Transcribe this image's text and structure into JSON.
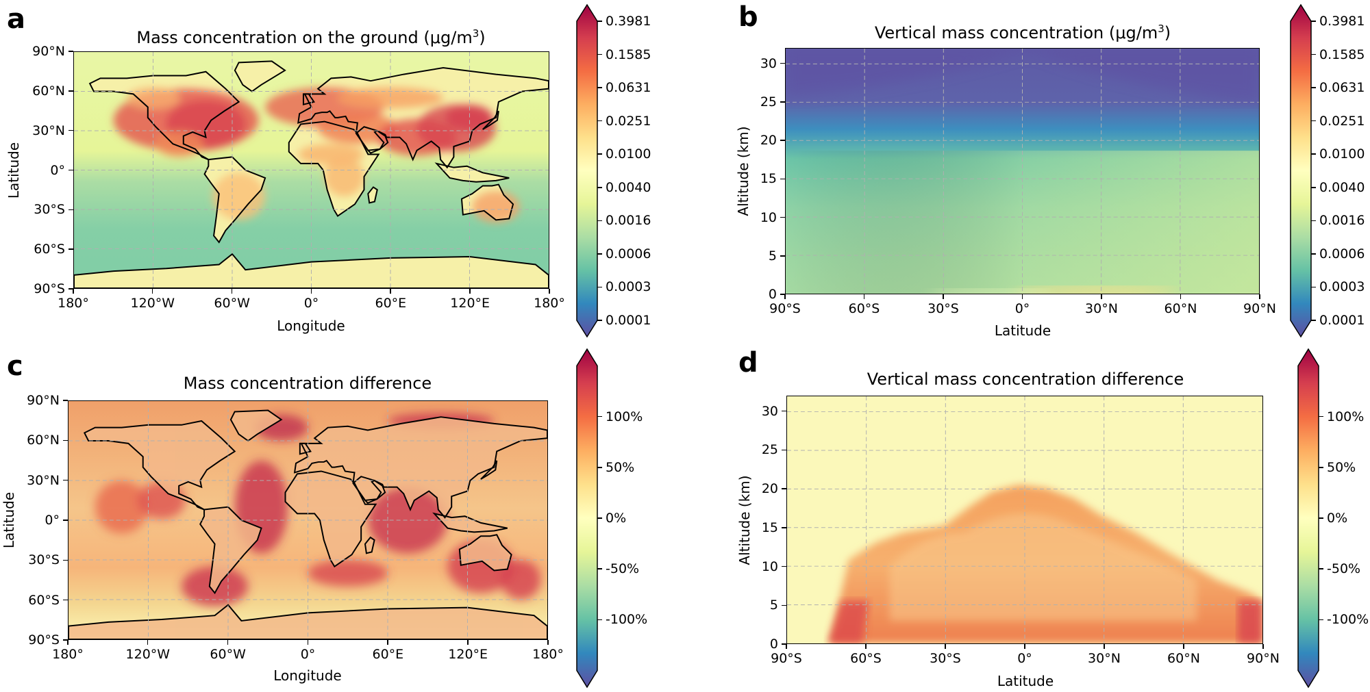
{
  "colors": {
    "spectral": [
      "#5e4fa2",
      "#3288bd",
      "#66c2a5",
      "#abdda4",
      "#e6f598",
      "#ffffbf",
      "#fee08b",
      "#fdae61",
      "#f46d43",
      "#d53e4f",
      "#9e0142"
    ],
    "grid": "#b0b0b0",
    "land_outline": "#000000"
  },
  "chart_data": [
    {
      "id": "a",
      "type": "heatmap",
      "letter": "a",
      "title": "Mass concentration on the ground (μg/m",
      "title_sup": "3",
      "title_end": ")",
      "xlabel": "Longitude",
      "ylabel": "Latitude",
      "xticks": [
        "180°",
        "120°W",
        "60°W",
        "0°",
        "60°E",
        "120°E",
        "180°"
      ],
      "yticks": [
        "90°N",
        "60°N",
        "30°N",
        "0°",
        "30°S",
        "60°S",
        "90°S"
      ],
      "xlim": [
        -180,
        180
      ],
      "ylim": [
        -90,
        90
      ],
      "colorbar": {
        "scale": "log",
        "ticks": [
          "0.3981",
          "0.1585",
          "0.0631",
          "0.0251",
          "0.0100",
          "0.0040",
          "0.0016",
          "0.0006",
          "0.0003",
          "0.0001"
        ],
        "extend": "both"
      }
    },
    {
      "id": "b",
      "type": "heatmap",
      "letter": "b",
      "title": "Vertical mass concentration (μg/m",
      "title_sup": "3",
      "title_end": ")",
      "xlabel": "Latitude",
      "ylabel": "Altitude (km)",
      "xticks": [
        "90°S",
        "60°S",
        "30°S",
        "0°",
        "30°N",
        "60°N",
        "90°N"
      ],
      "yticks": [
        "30",
        "25",
        "20",
        "15",
        "10",
        "5",
        "0"
      ],
      "xlim": [
        -90,
        90
      ],
      "ylim": [
        0,
        32
      ],
      "colorbar": {
        "scale": "log",
        "ticks": [
          "0.3981",
          "0.1585",
          "0.0631",
          "0.0251",
          "0.0100",
          "0.0040",
          "0.0016",
          "0.0006",
          "0.0003",
          "0.0001"
        ],
        "extend": "both"
      }
    },
    {
      "id": "c",
      "type": "heatmap",
      "letter": "c",
      "title": "Mass concentration difference",
      "title_sup": "",
      "title_end": "",
      "xlabel": "Longitude",
      "ylabel": "Latitude",
      "xticks": [
        "180°",
        "120°W",
        "60°W",
        "0°",
        "60°E",
        "120°E",
        "180°"
      ],
      "yticks": [
        "90°N",
        "60°N",
        "30°N",
        "0°",
        "30°S",
        "60°S",
        "90°S"
      ],
      "xlim": [
        -180,
        180
      ],
      "ylim": [
        -90,
        90
      ],
      "colorbar": {
        "scale": "linear",
        "ticks": [
          "100%",
          "50%",
          "0%",
          "-50%",
          "-100%"
        ],
        "range": [
          -150,
          150
        ],
        "extend": "both"
      }
    },
    {
      "id": "d",
      "type": "heatmap",
      "letter": "d",
      "title": "Vertical mass concentration difference",
      "title_sup": "",
      "title_end": "",
      "xlabel": "Latitude",
      "ylabel": "Altitude (km)",
      "xticks": [
        "90°S",
        "60°S",
        "30°S",
        "0°",
        "30°N",
        "60°N",
        "90°N"
      ],
      "yticks": [
        "30",
        "25",
        "20",
        "15",
        "10",
        "5",
        "0"
      ],
      "xlim": [
        -90,
        90
      ],
      "ylim": [
        0,
        32
      ],
      "colorbar": {
        "scale": "linear",
        "ticks": [
          "100%",
          "50%",
          "0%",
          "-50%",
          "-100%"
        ],
        "range": [
          -150,
          150
        ],
        "extend": "both"
      }
    }
  ]
}
